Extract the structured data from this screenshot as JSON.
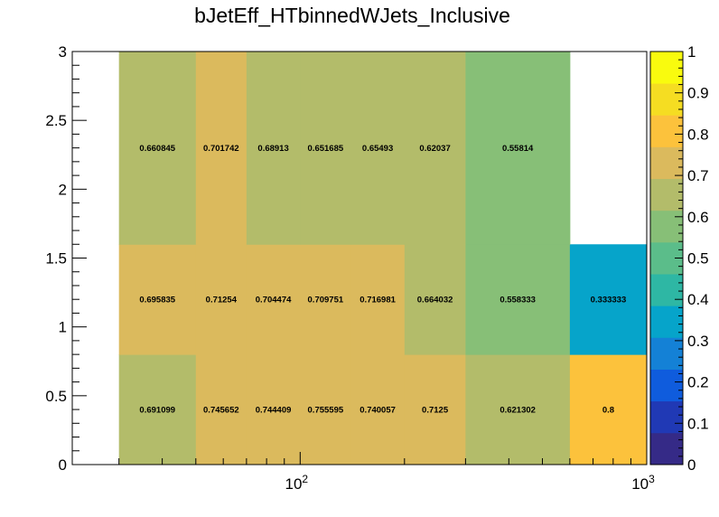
{
  "title": "bJetEff_HTbinnedWJets_Inclusive",
  "chart_data": {
    "type": "heatmap",
    "title": "bJetEff_HTbinnedWJets_Inclusive",
    "xlabel": "",
    "ylabel": "",
    "x_scale": "log",
    "xlim": [
      22,
      1000
    ],
    "ylim": [
      0,
      3
    ],
    "x_ticks": [
      {
        "value": 100,
        "base": "10",
        "exp": "2"
      },
      {
        "value": 1000,
        "base": "10",
        "exp": "3"
      }
    ],
    "y_ticks": [
      "0",
      "0.5",
      "1",
      "1.5",
      "2",
      "2.5",
      "3"
    ],
    "z_ticks": [
      "0",
      "0.1",
      "0.2",
      "0.3",
      "0.4",
      "0.5",
      "0.6",
      "0.7",
      "0.8",
      "0.9",
      "1"
    ],
    "zlim": [
      0,
      1
    ],
    "x_edges": [
      30,
      50,
      70,
      100,
      140,
      200,
      300,
      600,
      1000
    ],
    "y_edges": [
      0,
      0.8,
      1.6,
      3
    ],
    "rows": [
      {
        "y_range": [
          0,
          0.8
        ],
        "values": [
          0.691099,
          0.745652,
          0.744409,
          0.755595,
          0.740057,
          0.7125,
          0.621302,
          0.8
        ],
        "labels": [
          "0.691099",
          "0.745652",
          "0.744409",
          "0.755595",
          "0.740057",
          "0.7125",
          "0.621302",
          "0.8"
        ]
      },
      {
        "y_range": [
          0.8,
          1.6
        ],
        "values": [
          0.695835,
          0.71254,
          0.704474,
          0.709751,
          0.716981,
          0.664032,
          0.558333,
          0.333333
        ],
        "labels": [
          "0.695835",
          "0.71254",
          "0.704474",
          "0.709751",
          "0.716981",
          "0.664032",
          "0.558333",
          "0.333333"
        ]
      },
      {
        "y_range": [
          1.6,
          3
        ],
        "values": [
          0.660845,
          0.701742,
          0.68913,
          0.651685,
          0.65493,
          0.62037,
          0.55814,
          null
        ],
        "labels": [
          "0.660845",
          "0.701742",
          "0.68913",
          "0.651685",
          "0.65493",
          "0.62037",
          "0.55814",
          ""
        ]
      }
    ],
    "palette": [
      "#352a87",
      "#2039b5",
      "#0f5cdd",
      "#1481d6",
      "#06a4ca",
      "#2eb7a4",
      "#5bbd8a",
      "#87bf77",
      "#b3bc6a",
      "#dbba5d",
      "#fcc23c",
      "#f5dd22",
      "#f9fb0e"
    ]
  }
}
